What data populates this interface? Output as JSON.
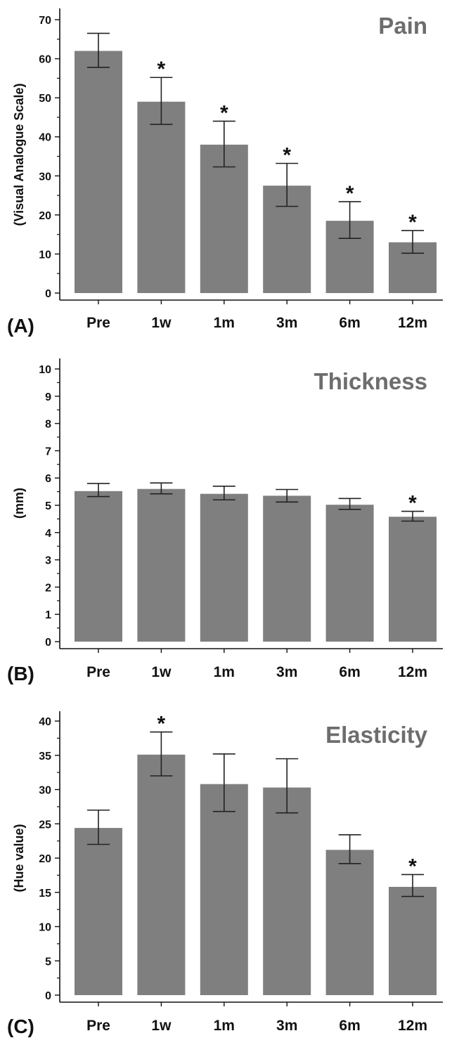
{
  "chart_data": [
    {
      "type": "bar",
      "panel_label": "(A)",
      "title": "Pain",
      "xlabel": "",
      "ylabel": "(Visual Analogue Scale)",
      "categories": [
        "Pre",
        "1w",
        "1m",
        "3m",
        "6m",
        "12m"
      ],
      "values": [
        62,
        49,
        38,
        27.5,
        18.5,
        13
      ],
      "error_upper": [
        66.5,
        55.2,
        44,
        33.2,
        23.4,
        16
      ],
      "error_lower": [
        57.8,
        43.2,
        32.3,
        22.2,
        14,
        10.2
      ],
      "significant": [
        false,
        true,
        true,
        true,
        true,
        true
      ],
      "significance_marker": "*",
      "ylim": [
        0,
        70
      ],
      "yticks": [
        0,
        10,
        20,
        30,
        40,
        50,
        60,
        70
      ],
      "bar_color": "#7f7f7f",
      "title_color": "#6d6d6d",
      "grid": false
    },
    {
      "type": "bar",
      "panel_label": "(B)",
      "title": "Thickness",
      "xlabel": "",
      "ylabel": "(mm)",
      "categories": [
        "Pre",
        "1w",
        "1m",
        "3m",
        "6m",
        "12m"
      ],
      "values": [
        5.52,
        5.6,
        5.42,
        5.35,
        5.02,
        4.58
      ],
      "error_upper": [
        5.8,
        5.82,
        5.7,
        5.58,
        5.25,
        4.78
      ],
      "error_lower": [
        5.32,
        5.42,
        5.2,
        5.12,
        4.85,
        4.42
      ],
      "significant": [
        false,
        false,
        false,
        false,
        false,
        true
      ],
      "significance_marker": "*",
      "ylim": [
        0,
        10
      ],
      "yticks": [
        0,
        1,
        2,
        3,
        4,
        5,
        6,
        7,
        8,
        9,
        10
      ],
      "bar_color": "#7f7f7f",
      "title_color": "#6d6d6d",
      "grid": false
    },
    {
      "type": "bar",
      "panel_label": "(C)",
      "title": "Elasticity",
      "xlabel": "",
      "ylabel": "(Hue value)",
      "categories": [
        "Pre",
        "1w",
        "1m",
        "3m",
        "6m",
        "12m"
      ],
      "values": [
        24.4,
        35.1,
        30.8,
        30.3,
        21.2,
        15.8
      ],
      "error_upper": [
        27,
        38.4,
        35.2,
        34.5,
        23.4,
        17.6
      ],
      "error_lower": [
        22,
        32,
        26.8,
        26.6,
        19.2,
        14.4
      ],
      "significant": [
        false,
        true,
        false,
        false,
        false,
        true
      ],
      "significance_marker": "*",
      "ylim": [
        0,
        40
      ],
      "yticks": [
        0,
        5,
        10,
        15,
        20,
        25,
        30,
        35,
        40
      ],
      "bar_color": "#7f7f7f",
      "title_color": "#6d6d6d",
      "grid": false
    }
  ]
}
